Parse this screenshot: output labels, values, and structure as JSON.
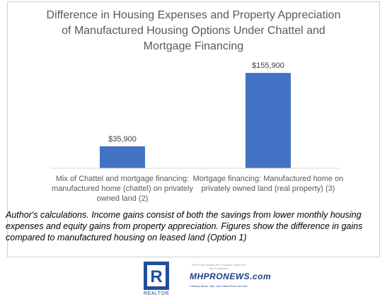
{
  "chart_data": {
    "type": "bar",
    "title": "Difference in Housing Expenses and Property Appreciation\nof Manufactured Housing Options Under Chattel and\nMortgage Financing",
    "categories": [
      "Mix of Chattel and mortgage financing: manufactured home (chattel) on privately owned land (2)",
      "Mortgage financing: Manufactured home on privately owned land (real property) (3)"
    ],
    "category_lines": [
      [
        "Mix of Chattel and mortgage financing:",
        "manufactured home (chattel) on privately",
        "owned land (2)"
      ],
      [
        "Mortgage financing: Manufactured home on",
        "privately owned land (real property) (3)"
      ]
    ],
    "values": [
      35900,
      155900
    ],
    "data_labels": [
      "$35,900",
      "$155,900"
    ],
    "ylim": [
      0,
      170000
    ],
    "grid": false,
    "bar_color": "#4472c4"
  },
  "caption": "Author's calculations. Income gains consist of both the savings from lower monthly housing expenses  and  equity gains from property appreciation. Figures show the difference in gains compared to manufactured housing on leased land (Option 1)",
  "logos": {
    "realtor": "REALTOR",
    "realtor_symbol": "R",
    "mhpro_top": "Third Party Images Are Provided Under Fair Use Guidelines",
    "mhpro_name": "MHPRONEWS.com",
    "mhpro_tag": "Industry News, Tips, and Views Pros Can Use"
  }
}
